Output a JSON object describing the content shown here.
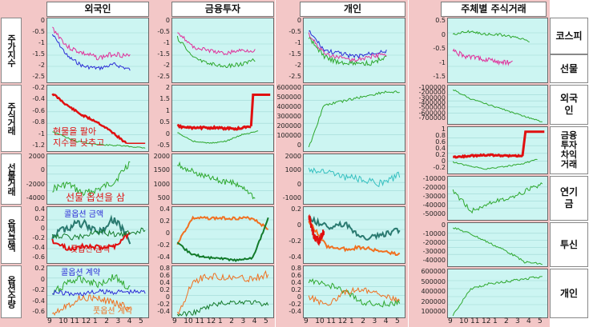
{
  "columns": {
    "foreign": "외국인",
    "financial": "금융투자",
    "individual": "개인",
    "by_entity": "주체별 주식거래"
  },
  "row_labels_left": [
    "주가지수",
    "주식거래",
    "선물거래",
    "옵션금액",
    "옵션수량"
  ],
  "row_labels_right": [
    "코스피",
    "선물",
    "외국인",
    "금융투자차익거래",
    "연기금",
    "투신",
    "개인"
  ],
  "annotations": {
    "spot_sell": "현물을 팔아\n지수를 낮추고",
    "futures_option_buy": "선물 옵션을 삼",
    "call_amount": "콜옵션 금액",
    "put_amount": "풋옵션 금액",
    "call_contract": "콜옵션 계약",
    "put_contract": "풋옵션 계약"
  },
  "x_ticks": [
    "9",
    "10",
    "11",
    "12",
    "1",
    "2",
    "3",
    "4",
    "5"
  ],
  "y_ticks": {
    "a_index": [
      "0",
      "-0.5",
      "-1",
      "-1.5",
      "-2",
      "-2.5"
    ],
    "a_stock": [
      "-0.2",
      "-0.4",
      "-0.6",
      "-0.8",
      "-1",
      "-1.2"
    ],
    "a_fut": [
      "2000",
      "0",
      "-2000",
      "-4000"
    ],
    "a_optamt": [
      "0.4",
      "0.2",
      "0",
      "-0.2",
      "-0.4",
      "-0.6"
    ],
    "a_optqty": [
      "0.2",
      "0",
      "-0.2",
      "-0.4",
      "-0.6"
    ],
    "b_index": [
      "0",
      "-0.5",
      "-1",
      "-1.5",
      "-2",
      "-2.5"
    ],
    "b_stock": [
      "2",
      "1.5",
      "1",
      "0.5",
      "0",
      "-0.5"
    ],
    "b_fut": [
      "2000",
      "1500",
      "1000",
      "500"
    ],
    "b_optamt": [
      "0.4",
      "0.2",
      "0",
      "-0.2",
      "-0.4"
    ],
    "b_optqty": [
      "0.8",
      "0.6",
      "0.4",
      "0.2",
      "0",
      "-0.2",
      "-0.4"
    ],
    "c_index": [
      "0",
      "-0.5",
      "-1",
      "-1.5",
      "-2",
      "-2.5"
    ],
    "c_stock": [
      "600000",
      "500000",
      "400000",
      "300000",
      "200000",
      "100000",
      "0"
    ],
    "c_fut": [
      "2000",
      "1000",
      "0",
      "-1000"
    ],
    "c_optamt": [
      "0.2",
      "0",
      "-0.2",
      "-0.4"
    ],
    "c_optqty": [
      "0.8",
      "0.6",
      "0.4",
      "0.2",
      "0",
      "-0.2",
      "-0.4"
    ],
    "d_kospi": [
      "0.5",
      "0",
      "-0.5",
      "-1",
      "-1.5"
    ],
    "d_foreign": [
      "-100000",
      "-200000",
      "-300000",
      "-400000",
      "-500000",
      "-600000",
      "-700000"
    ],
    "d_fin": [
      "1",
      "0.8",
      "0.6",
      "0.4",
      "0.2",
      "0",
      "-0.2"
    ],
    "d_pension": [
      "-10000",
      "-20000",
      "-30000",
      "-40000",
      "-50000"
    ],
    "d_trust": [
      "0",
      "-10000",
      "-20000",
      "-30000",
      "-40000"
    ],
    "d_indiv": [
      "600000",
      "500000",
      "400000",
      "200000",
      "100000"
    ]
  },
  "colors": {
    "background_pink": "#f3c7c7",
    "panel_bg": "#ccf5f2",
    "series_blue": "#2b2bd6",
    "series_magenta": "#e0309a",
    "series_green": "#2ea82e",
    "series_red": "#e01010",
    "series_teal": "#2a7a70",
    "series_orange": "#f07020",
    "series_darkgreen": "#127a2a",
    "series_cyan": "#35c0c0"
  }
}
